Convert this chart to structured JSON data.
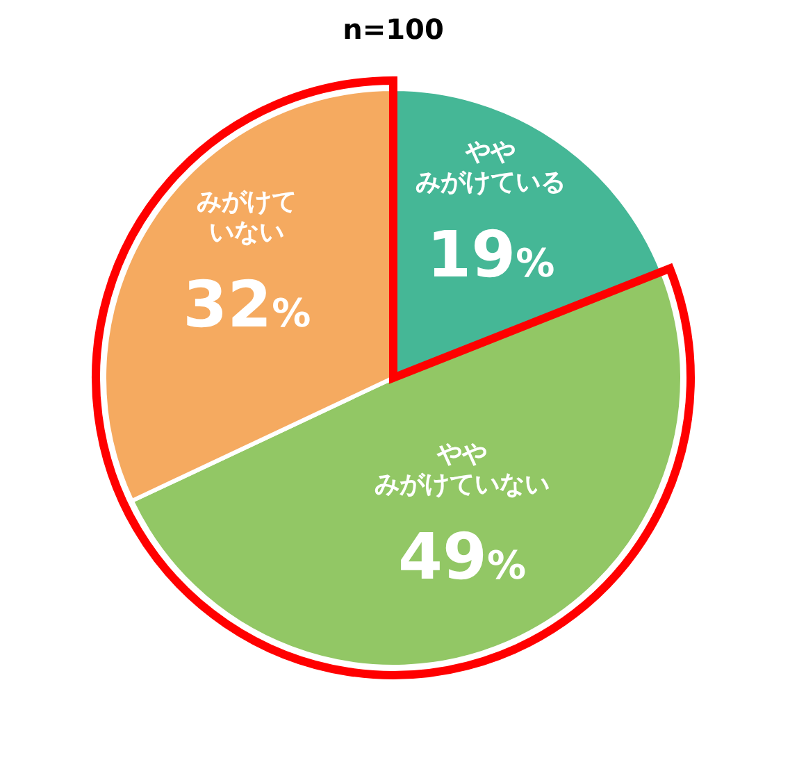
{
  "chart_data": {
    "type": "pie",
    "title": "n=100",
    "categories": [
      "ややみがけている",
      "ややみがけていない",
      "みがけていない"
    ],
    "values": [
      19,
      49,
      32
    ],
    "colors": [
      "#45b796",
      "#92c765",
      "#f5aa60"
    ],
    "value_labels": [
      "19%",
      "49%",
      "32%"
    ]
  }
}
